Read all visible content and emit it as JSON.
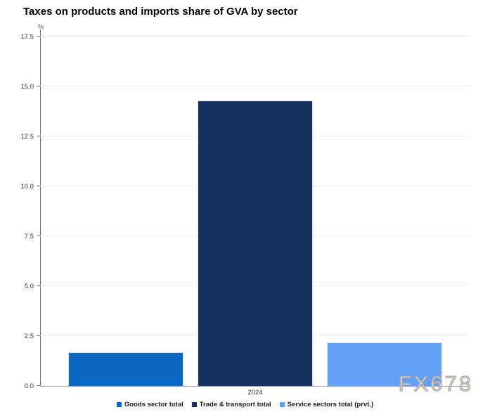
{
  "title": "Taxes on products and imports share of GVA by sector",
  "watermark": "FX678",
  "chart_data": {
    "type": "bar",
    "title": "Taxes on products and imports share of GVA by sector",
    "categories": [
      "2024"
    ],
    "series": [
      {
        "name": "Goods sector total",
        "color": "#0b69c2",
        "values": [
          1.7
        ]
      },
      {
        "name": "Trade & transport total",
        "color": "#17305f",
        "values": [
          14.3
        ]
      },
      {
        "name": "Service sectors total (prvt.)",
        "color": "#62a1f6",
        "values": [
          2.2
        ]
      }
    ],
    "xlabel": "",
    "ylabel": "%",
    "ylim": [
      0,
      17.5
    ],
    "yticks": [
      0,
      2.5,
      5,
      7.5,
      10,
      12.5,
      15,
      17.5
    ],
    "grid": true,
    "legend_position": "bottom"
  }
}
